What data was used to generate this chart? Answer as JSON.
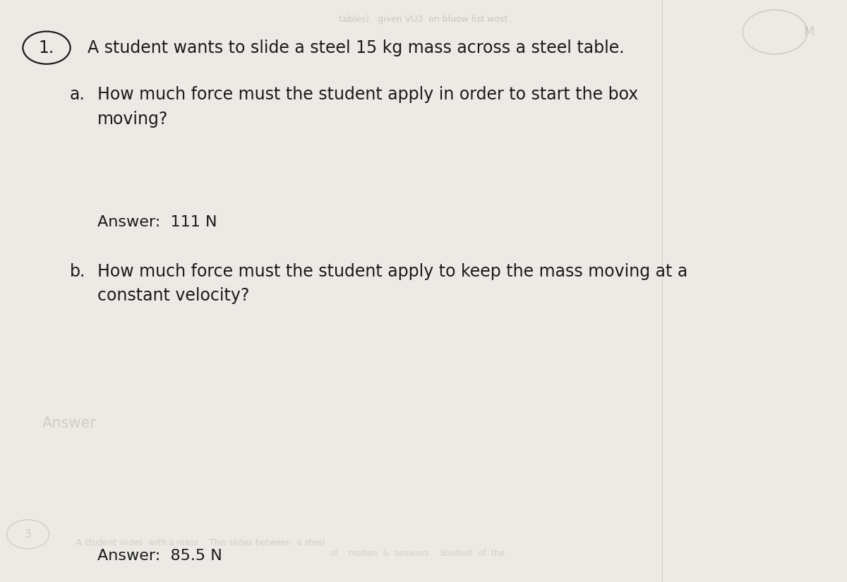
{
  "background_color": "#d0cdc8",
  "paper_color": "#edeae6",
  "question_number": "1.",
  "main_text": "A student wants to slide a steel 15 kg mass across a steel table.",
  "part_a_label": "a.",
  "part_a_text": "How much force must the student apply in order to start the box\nmoving?",
  "answer_a_label": "Answer:",
  "answer_a_value": "111 N",
  "part_b_label": "b.",
  "part_b_text": "How much force must the student apply to keep the mass moving at a\nconstant velocity?",
  "answer_b_label": "Answer:",
  "answer_b_value": "85.5 N",
  "font_size_main": 17,
  "font_size_answer": 16,
  "text_color": "#1a1a1a",
  "faded_color": "#b0a898"
}
